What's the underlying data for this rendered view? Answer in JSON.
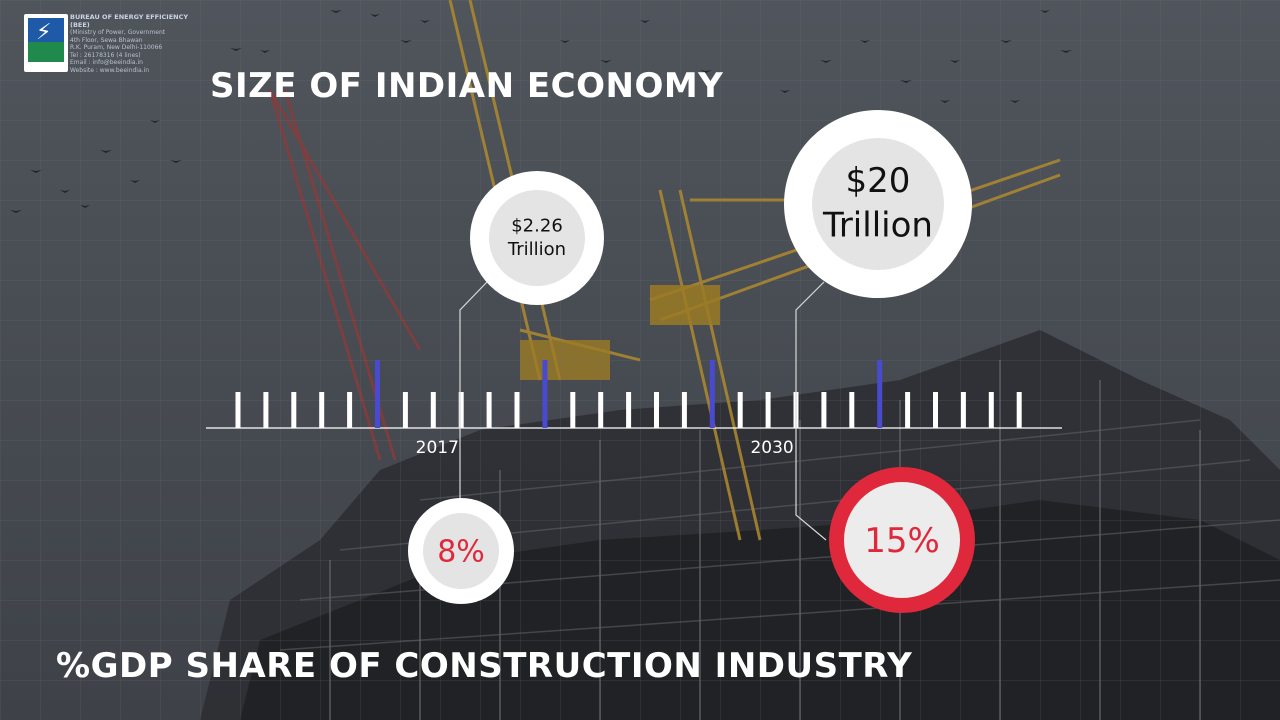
{
  "org": {
    "name": "BUREAU OF ENERGY EFFICIENCY (BEE)",
    "lines": [
      "(Ministry of Power, Government",
      "4th Floor, Sewa Bhawan",
      "R.K. Puram, New Delhi-110066",
      "Tel : 26178316 (4 lines)",
      "Email : info@beeindia.in",
      "Website : www.beeindia.in"
    ]
  },
  "chart_data": {
    "type": "timeline",
    "title": "SIZE OF INDIAN ECONOMY",
    "subtitle": "%GDP SHARE OF CONSTRUCTION INDUSTRY",
    "xlabel": "",
    "ylabel": "",
    "tick_labels": [
      "2017",
      "2030"
    ],
    "tick_count": 29,
    "highlight_tick_indices": [
      5,
      11,
      17,
      23
    ],
    "series": [
      {
        "name": "Size of Indian economy",
        "points": [
          {
            "year": "2017",
            "label": [
              "$2.26",
              "Trillion"
            ]
          },
          {
            "year": "2030",
            "label": [
              "$20",
              "Trillion"
            ]
          }
        ]
      },
      {
        "name": "%GDP share of construction industry",
        "points": [
          {
            "year": "2017",
            "value": 8,
            "label": "8%"
          },
          {
            "year": "2030",
            "value": 15,
            "label": "15%"
          }
        ]
      }
    ],
    "colors": {
      "highlight_tick": "#4a4ad0",
      "tick": "#ffffff",
      "percent_text": "#e0283c",
      "ring_red": "#e0283c",
      "bubble_inner": "#e4e4e4"
    }
  }
}
